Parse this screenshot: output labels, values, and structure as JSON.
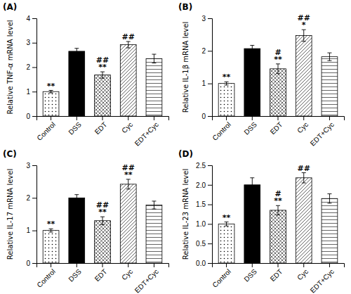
{
  "chart_data": [
    {
      "type": "bar",
      "title": "(A)",
      "ylabel": "Relative TNF-α mRNA level",
      "categories": [
        "Control",
        "DSS",
        "EDT",
        "Cyc",
        "EDT+Cyc"
      ],
      "values": [
        1.0,
        2.65,
        1.68,
        2.92,
        2.35
      ],
      "errors": [
        0.05,
        0.12,
        0.13,
        0.13,
        0.18
      ],
      "annotations": [
        [
          "**"
        ],
        null,
        [
          "##",
          "**"
        ],
        [
          "##"
        ],
        null
      ],
      "colors": [
        "white",
        "black",
        "white",
        "white",
        "white"
      ],
      "ylim": [
        0,
        4
      ],
      "yticks": [
        0,
        1,
        2,
        3,
        4
      ],
      "grid": false
    },
    {
      "type": "bar",
      "title": "(B)",
      "ylabel": "Relative IL-1β mRNA level",
      "categories": [
        "Control",
        "DSS",
        "EDT",
        "Cyc",
        "EDT+Cyc"
      ],
      "values": [
        1.0,
        2.07,
        1.45,
        2.47,
        1.82
      ],
      "errors": [
        0.05,
        0.1,
        0.15,
        0.18,
        0.12
      ],
      "annotations": [
        [
          "**"
        ],
        null,
        [
          "#",
          "**"
        ],
        [
          "##",
          "*"
        ],
        null
      ],
      "colors": [
        "white",
        "black",
        "white",
        "white",
        "white"
      ],
      "ylim": [
        0,
        3
      ],
      "yticks": [
        0,
        1,
        2,
        3
      ],
      "grid": false
    },
    {
      "type": "bar",
      "title": "(C)",
      "ylabel": "Relative IL-17 mRNA level",
      "categories": [
        "Control",
        "DSS",
        "EDT",
        "Cyc",
        "EDT+Cyc"
      ],
      "values": [
        1.0,
        2.0,
        1.3,
        2.42,
        1.78
      ],
      "errors": [
        0.05,
        0.1,
        0.12,
        0.15,
        0.12
      ],
      "annotations": [
        [
          "**"
        ],
        null,
        [
          "##",
          "**"
        ],
        [
          "##",
          "**"
        ],
        null
      ],
      "colors": [
        "white",
        "black",
        "white",
        "white",
        "white"
      ],
      "ylim": [
        0,
        3
      ],
      "yticks": [
        0,
        1,
        2,
        3
      ],
      "grid": false
    },
    {
      "type": "bar",
      "title": "(D)",
      "ylabel": "Relative IL-23 mRNA level",
      "categories": [
        "Control",
        "DSS",
        "EDT",
        "Cyc",
        "EDT+Cyc"
      ],
      "values": [
        1.0,
        2.0,
        1.35,
        2.18,
        1.65
      ],
      "errors": [
        0.05,
        0.18,
        0.12,
        0.13,
        0.12
      ],
      "annotations": [
        [
          "**"
        ],
        null,
        [
          "#",
          "**"
        ],
        [
          "##"
        ],
        null
      ],
      "colors": [
        "white",
        "black",
        "white",
        "white",
        "white"
      ],
      "ylim": [
        0,
        2.5
      ],
      "yticks": [
        {
          "value": 0,
          "label": "0.0"
        },
        0.5,
        {
          "value": 1.0,
          "label": "1.0"
        },
        1.5,
        {
          "value": 2.0,
          "label": "2.0"
        },
        2.5
      ],
      "grid": false
    }
  ]
}
